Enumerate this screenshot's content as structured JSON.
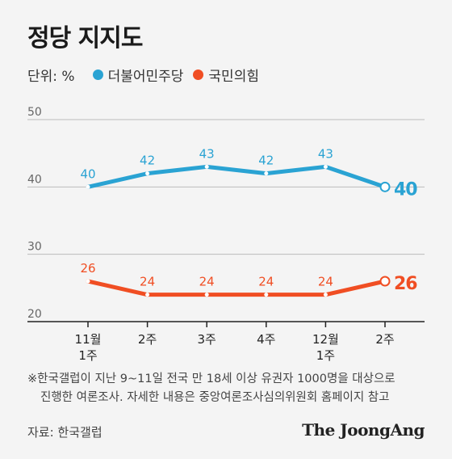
{
  "title": "정당 지지도",
  "unit_label": "단위: %",
  "note_line1": "※한국갤럽이 지난 9~11일 전국 만 18세 이상 유권자 1000명을 대상으로",
  "note_line2": "진행한 여론조사. 자세한 내용은 중앙여론조사심의위원회 홈페이지 참고",
  "source": "자료: 한국갤럽",
  "brand": "The JoongAng",
  "chart_data": {
    "type": "line",
    "categories": [
      [
        "11월",
        "1주"
      ],
      [
        "2주"
      ],
      [
        "3주"
      ],
      [
        "4주"
      ],
      [
        "12월",
        "1주"
      ],
      [
        "2주"
      ]
    ],
    "ylim": [
      20,
      50
    ],
    "yticks": [
      50,
      40,
      30,
      20
    ],
    "grid": true,
    "legend_position": "top-left",
    "series": [
      {
        "name": "더불어민주당",
        "color": "#2aa3d3",
        "values": [
          40,
          42,
          43,
          42,
          43,
          40
        ]
      },
      {
        "name": "국민의힘",
        "color": "#f04e23",
        "values": [
          26,
          24,
          24,
          24,
          24,
          26
        ]
      }
    ]
  }
}
